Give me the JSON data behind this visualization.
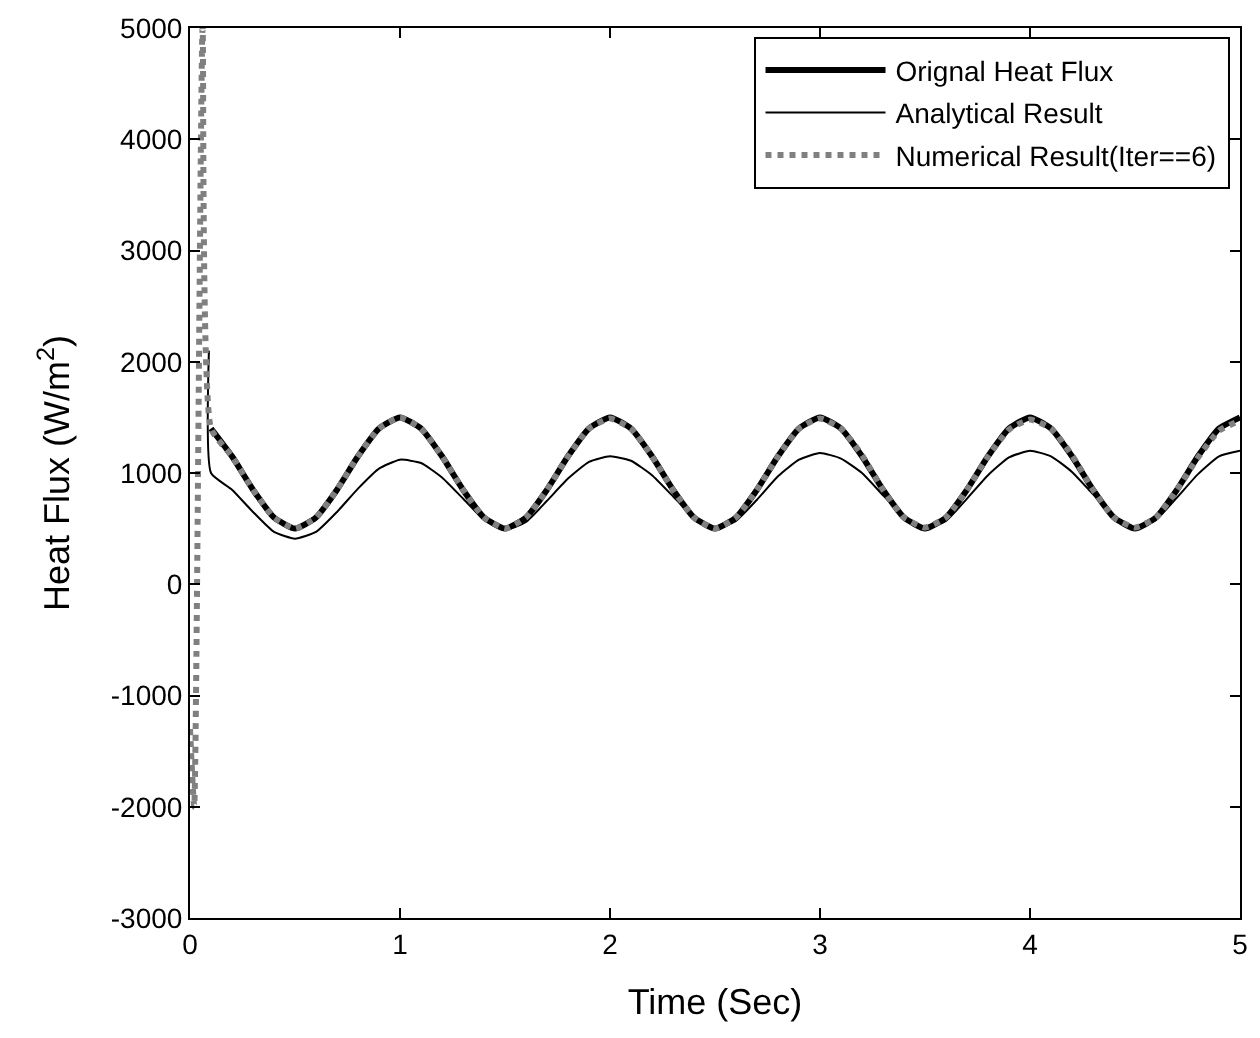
{
  "chart_data": {
    "type": "line",
    "xlabel": "Time (Sec)",
    "ylabel": "Heat Flux (W/m$^{2}$)",
    "xlim": [
      0,
      5
    ],
    "ylim": [
      -3000,
      5000
    ],
    "xticks": [
      0,
      1,
      2,
      3,
      4,
      5
    ],
    "yticks": [
      -3000,
      -2000,
      -1000,
      0,
      1000,
      2000,
      3000,
      4000,
      5000
    ],
    "legend": "top right",
    "marker": "none",
    "series": [
      {
        "name": "Orignal Heat Flux",
        "color": "#000000",
        "line_style": "solid",
        "x": [
          0.1,
          0.2,
          0.3,
          0.4,
          0.5,
          0.6,
          0.7,
          0.8,
          0.9,
          1.0,
          1.1,
          1.2,
          1.3,
          1.4,
          1.5,
          1.6,
          1.7,
          1.8,
          1.9,
          2.0,
          2.1,
          2.2,
          2.3,
          2.4,
          2.5,
          2.6,
          2.7,
          2.8,
          2.9,
          3.0,
          3.1,
          3.2,
          3.3,
          3.4,
          3.5,
          3.6,
          3.7,
          3.8,
          3.9,
          4.0,
          4.1,
          4.2,
          4.3,
          4.4,
          4.5,
          4.6,
          4.7,
          4.8,
          4.9,
          5.0
        ],
        "values": [
          1400,
          1150,
          850,
          600,
          500,
          600,
          850,
          1150,
          1400,
          1500,
          1400,
          1150,
          850,
          600,
          500,
          600,
          850,
          1150,
          1400,
          1500,
          1400,
          1150,
          850,
          600,
          500,
          600,
          850,
          1150,
          1400,
          1500,
          1400,
          1150,
          850,
          600,
          500,
          600,
          850,
          1150,
          1400,
          1500,
          1400,
          1150,
          850,
          600,
          500,
          600,
          850,
          1150,
          1400,
          1500
        ]
      },
      {
        "name": "Analytical Result",
        "color": "#000000",
        "line_style": "solid",
        "x": [
          0.09,
          0.1,
          0.2,
          0.3,
          0.4,
          0.5,
          0.6,
          0.7,
          0.8,
          0.9,
          1.0,
          1.1,
          1.2,
          1.3,
          1.4,
          1.5,
          1.6,
          1.7,
          1.8,
          1.9,
          2.0,
          2.1,
          2.2,
          2.3,
          2.4,
          2.5,
          2.6,
          2.7,
          2.8,
          2.9,
          3.0,
          3.1,
          3.2,
          3.3,
          3.4,
          3.5,
          3.6,
          3.7,
          3.8,
          3.9,
          4.0,
          4.1,
          4.2,
          4.3,
          4.4,
          4.5,
          4.6,
          4.7,
          4.8,
          4.9,
          5.0
        ],
        "values": [
          2100,
          1000,
          850,
          650,
          470,
          410,
          470,
          650,
          860,
          1040,
          1120,
          1090,
          960,
          770,
          580,
          490,
          560,
          750,
          950,
          1100,
          1150,
          1110,
          980,
          790,
          600,
          500,
          570,
          760,
          970,
          1120,
          1180,
          1130,
          1000,
          800,
          610,
          500,
          570,
          770,
          980,
          1140,
          1200,
          1150,
          1010,
          810,
          610,
          500,
          580,
          780,
          990,
          1150,
          1200
        ]
      },
      {
        "name": "Numerical Result(Iter==6)",
        "color": "#808080",
        "line_style": "dotted",
        "x": [
          0.0,
          0.02,
          0.06,
          0.1,
          0.2,
          0.3,
          0.4,
          0.5,
          0.6,
          0.7,
          0.8,
          0.9,
          1.0,
          1.1,
          1.2,
          1.3,
          1.4,
          1.5,
          1.6,
          1.7,
          1.8,
          1.9,
          2.0,
          2.1,
          2.2,
          2.3,
          2.4,
          2.5,
          2.6,
          2.7,
          2.8,
          2.9,
          3.0,
          3.1,
          3.2,
          3.3,
          3.4,
          3.5,
          3.6,
          3.7,
          3.8,
          3.9,
          4.0,
          4.1,
          4.2,
          4.3,
          4.4,
          4.5,
          4.6,
          4.7,
          4.8,
          4.9,
          5.0
        ],
        "values": [
          -1300,
          -2000,
          5000,
          1400,
          1150,
          850,
          600,
          500,
          600,
          850,
          1150,
          1400,
          1500,
          1400,
          1150,
          850,
          600,
          500,
          600,
          850,
          1150,
          1400,
          1490,
          1400,
          1150,
          850,
          600,
          500,
          600,
          850,
          1150,
          1400,
          1490,
          1400,
          1160,
          850,
          600,
          510,
          600,
          850,
          1150,
          1390,
          1480,
          1400,
          1160,
          850,
          600,
          510,
          600,
          850,
          1140,
          1380,
          1470
        ]
      }
    ]
  }
}
